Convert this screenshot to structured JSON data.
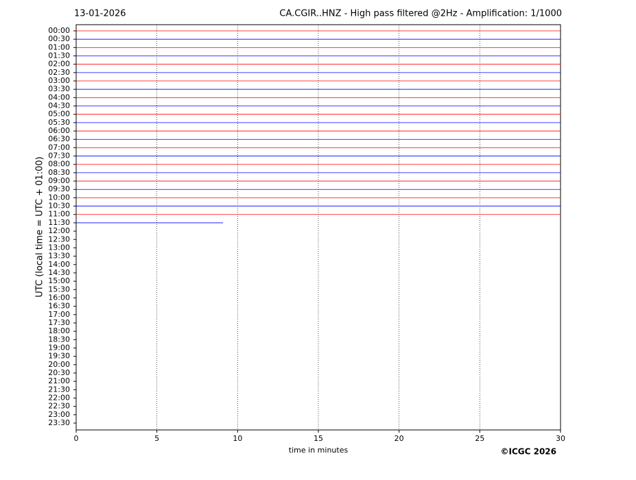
{
  "chart_data": {
    "type": "helicorder",
    "title": "CA.CGIR..HNZ - High pass filtered @2Hz - Amplification: 1/1000",
    "date": "13-01-2026",
    "ylabel": "UTC (local time = UTC + 01:00)",
    "xlabel": "time in minutes",
    "credit": "©ICGC 2026",
    "categories": [
      "00:00",
      "00:30",
      "01:00",
      "01:30",
      "02:00",
      "02:30",
      "03:00",
      "03:30",
      "04:00",
      "04:30",
      "05:00",
      "05:30",
      "06:00",
      "06:30",
      "07:00",
      "07:30",
      "08:00",
      "08:30",
      "09:00",
      "09:30",
      "10:00",
      "10:30",
      "11:00",
      "11:30",
      "12:00",
      "12:30",
      "13:00",
      "13:30",
      "14:00",
      "14:30",
      "15:00",
      "15:30",
      "16:00",
      "16:30",
      "17:00",
      "17:30",
      "18:00",
      "18:30",
      "19:00",
      "19:30",
      "20:00",
      "20:30",
      "21:00",
      "21:30",
      "22:00",
      "22:30",
      "23:00",
      "23:30"
    ],
    "values": [
      30,
      30,
      30,
      30,
      30,
      30,
      30,
      30,
      30,
      30,
      30,
      30,
      30,
      30,
      30,
      30,
      30,
      30,
      30,
      30,
      30,
      30,
      30,
      9.1,
      null,
      null,
      null,
      null,
      null,
      null,
      null,
      null,
      null,
      null,
      null,
      null,
      null,
      null,
      null,
      null,
      null,
      null,
      null,
      null,
      null,
      null,
      null,
      null
    ],
    "colors": [
      "#ff0000",
      "#0000ff"
    ],
    "xlim": [
      0,
      30
    ],
    "xticks": [
      0,
      5,
      10,
      15,
      20,
      25,
      30
    ],
    "grid": true
  }
}
